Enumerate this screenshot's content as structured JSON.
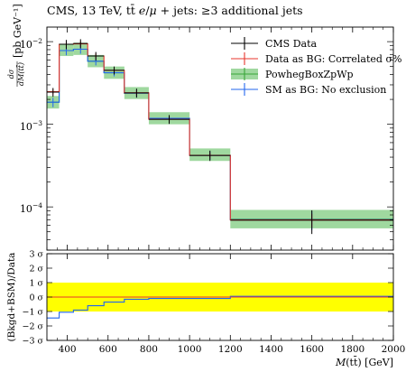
{
  "header": {
    "title_parts": [
      "CMS, 13 TeV, t",
      "t̄",
      " ",
      "e",
      "/",
      "μ",
      " + jets: ",
      "≥3 additional jets"
    ]
  },
  "upper": {
    "ylabel_fraction_num": "dσ",
    "ylabel_fraction_den": "dM(tt̄)",
    "ylabel_unit": "[pb GeV⁻¹]",
    "ytick_labels": [
      {
        "base": "10",
        "exp": "−2",
        "value": 0.01
      },
      {
        "base": "10",
        "exp": "−3",
        "value": 0.001
      },
      {
        "base": "10",
        "exp": "−4",
        "value": 0.0001
      }
    ]
  },
  "lower": {
    "ylabel": "(Bkgd+BSM)/Data",
    "ytick_labels": [
      "3 σ",
      "2 σ",
      "1 σ",
      "0 σ",
      "−1 σ",
      "−2 σ",
      "−3 σ"
    ]
  },
  "xaxis": {
    "label_M": "M",
    "label_rest": "(tt̄) [GeV]",
    "tick_labels": [
      "400",
      "600",
      "800",
      "1000",
      "1200",
      "1400",
      "1600",
      "1800",
      "2000"
    ]
  },
  "legend": {
    "entries": [
      {
        "label": "CMS Data",
        "color": "#000000",
        "style": "errorbar"
      },
      {
        "label": "Data as BG: Correlated σ%",
        "color": "#e8362c",
        "style": "line"
      },
      {
        "label": "PowhegBoxZpWp",
        "color": "#2ca02c",
        "style": "band"
      },
      {
        "label": "SM as BG: No exclusion",
        "color": "#2266ee",
        "style": "line"
      }
    ]
  },
  "colors": {
    "data": "#000000",
    "red": "#e8362c",
    "green_band": "#9fd89f",
    "green_line": "#3aa63a",
    "blue": "#2266ee",
    "ratio_band": "#ffff00"
  },
  "chart_data": {
    "type": "line",
    "x_scale": "linear",
    "y_scale": "log",
    "xlim": [
      300,
      2000
    ],
    "ylim_upper": [
      3e-05,
      0.015
    ],
    "ylim_lower": [
      -3,
      3
    ],
    "bins": [
      [
        300,
        360
      ],
      [
        360,
        430
      ],
      [
        430,
        500
      ],
      [
        500,
        580
      ],
      [
        580,
        680
      ],
      [
        680,
        800
      ],
      [
        800,
        1000
      ],
      [
        1000,
        1200
      ],
      [
        1200,
        2000
      ]
    ],
    "series": [
      {
        "name": "CMS Data",
        "values": [
          0.00245,
          0.0093,
          0.0095,
          0.0067,
          0.0045,
          0.0024,
          0.00115,
          0.00042,
          6.9e-05
        ],
        "errors": [
          0.0003,
          0.0012,
          0.0012,
          0.0008,
          0.0005,
          0.0003,
          0.00014,
          6e-05,
          2.2e-05
        ]
      },
      {
        "name": "Data as BG: Correlated σ%",
        "values": [
          0.00248,
          0.0093,
          0.0094,
          0.0067,
          0.0045,
          0.0024,
          0.00115,
          0.00042,
          6.95e-05
        ]
      },
      {
        "name": "PowhegBoxZpWp",
        "values": [
          0.00185,
          0.0078,
          0.0081,
          0.0058,
          0.0042,
          0.00238,
          0.00118,
          0.00042,
          7.1e-05
        ],
        "band_low": [
          0.00155,
          0.0067,
          0.0069,
          0.0049,
          0.00355,
          0.00202,
          0.001,
          0.00036,
          5.5e-05
        ],
        "band_high": [
          0.0022,
          0.0093,
          0.0097,
          0.0069,
          0.005,
          0.00282,
          0.0014,
          0.00051,
          9.2e-05
        ]
      },
      {
        "name": "SM as BG: No exclusion",
        "values": [
          0.00185,
          0.0078,
          0.0081,
          0.0058,
          0.0042,
          0.00238,
          0.00118,
          0.00042,
          7e-05
        ]
      }
    ],
    "ratio": {
      "ylabel": "(Bkgd+BSM)/Data",
      "band": [
        -1,
        1
      ],
      "red_values": [
        0,
        0,
        0,
        0,
        0,
        0,
        0,
        0,
        0
      ],
      "blue_values": [
        -1.45,
        -1.05,
        -0.9,
        -0.6,
        -0.35,
        -0.15,
        -0.1,
        -0.1,
        0.05
      ]
    }
  }
}
